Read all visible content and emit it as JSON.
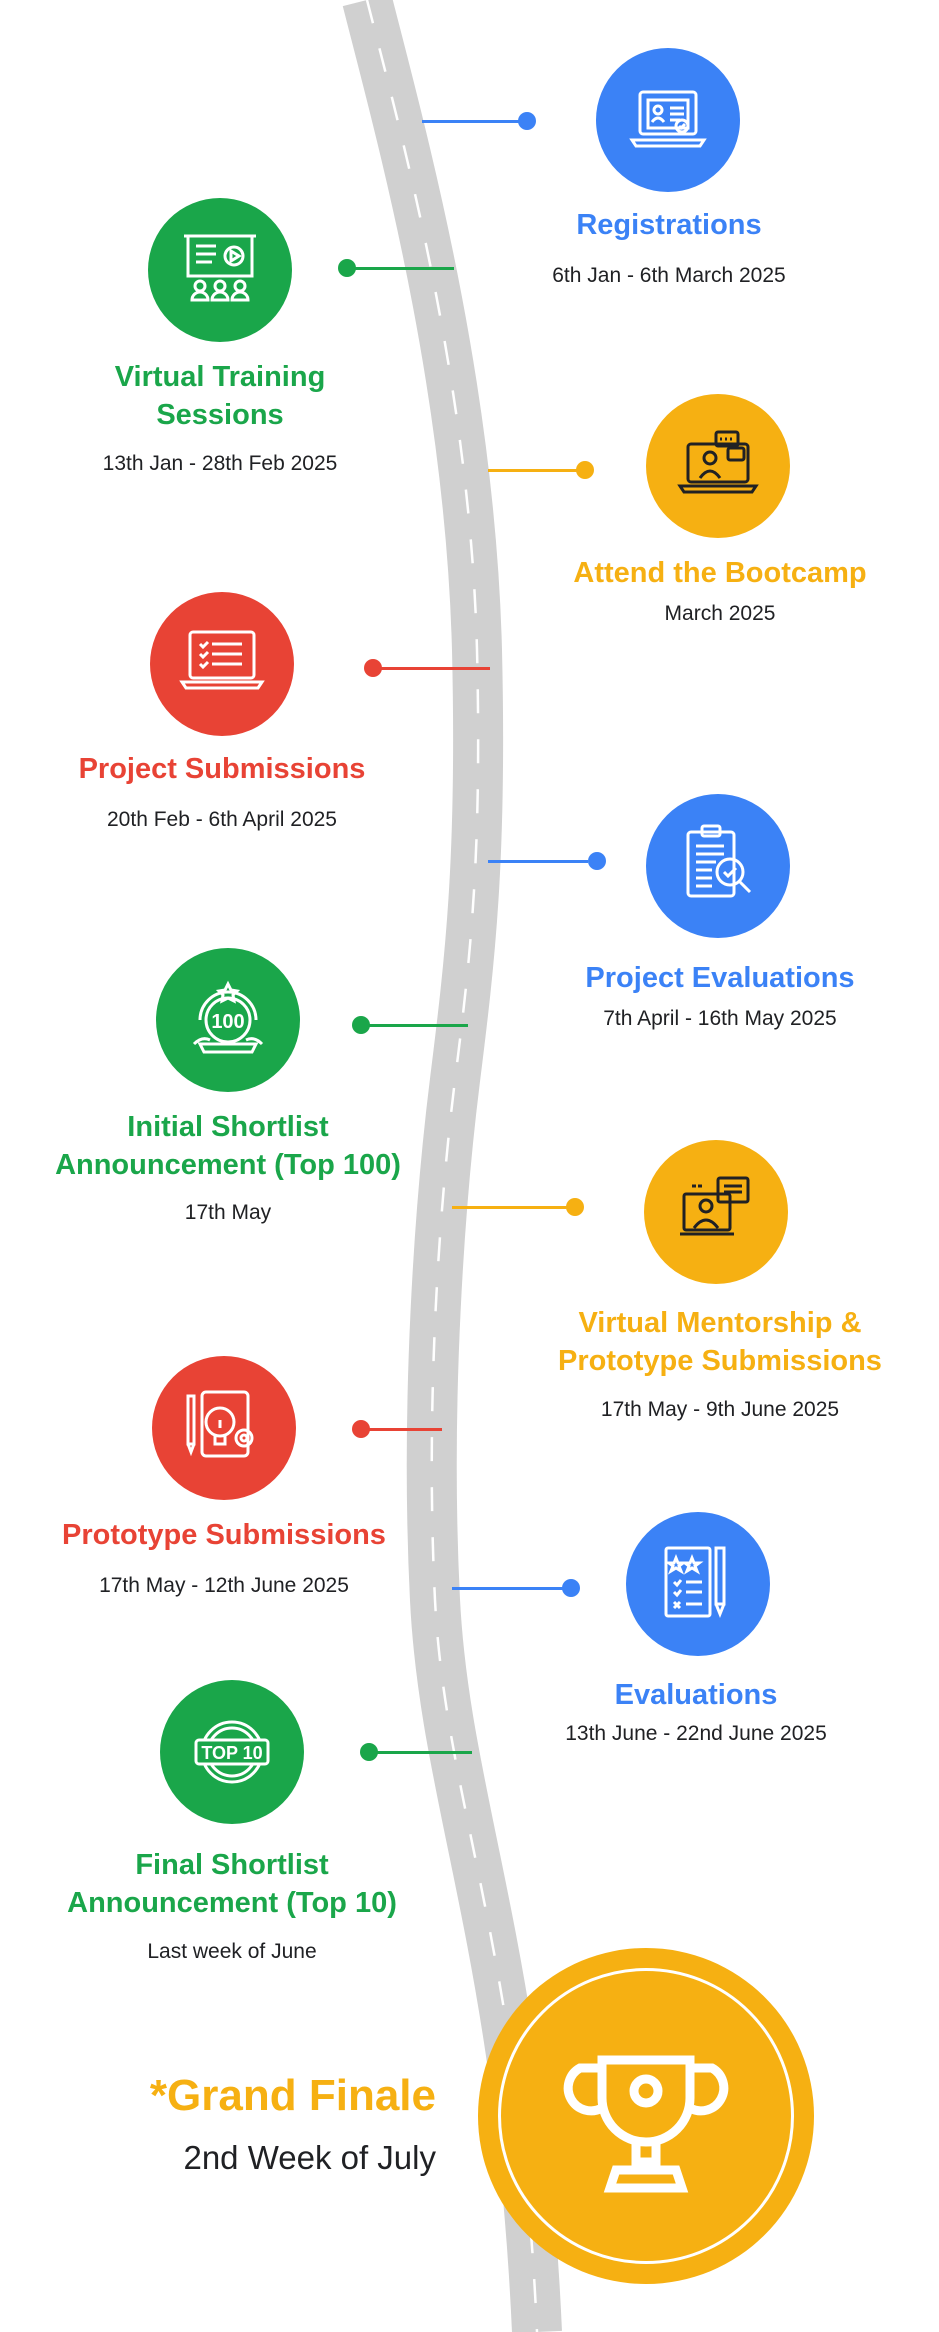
{
  "colors": {
    "blue": "#3b82f6",
    "green": "#1aa64a",
    "yellow": "#f6b012",
    "red": "#e84335",
    "road": "#d0d0d0"
  },
  "milestones": [
    {
      "title": "Registrations",
      "date": "6th Jan - 6th March 2025",
      "color": "blue",
      "icon": "laptop-form-icon"
    },
    {
      "title": "Virtual Training Sessions",
      "date": "13th Jan - 28th Feb 2025",
      "color": "green",
      "icon": "presentation-icon"
    },
    {
      "title": "Attend the Bootcamp",
      "date": "March 2025",
      "color": "yellow",
      "icon": "laptop-chat-icon"
    },
    {
      "title": "Project Submissions",
      "date": "20th Feb - 6th April 2025",
      "color": "red",
      "icon": "checklist-laptop-icon"
    },
    {
      "title": "Project Evaluations",
      "date": "7th April - 16th May 2025",
      "color": "blue",
      "icon": "clipboard-search-icon"
    },
    {
      "title": "Initial Shortlist Announcement (Top 100)",
      "date": "17th May",
      "color": "green",
      "icon": "badge-100-icon"
    },
    {
      "title": "Virtual Mentorship & Prototype Submissions",
      "date": "17th May - 9th June 2025",
      "color": "yellow",
      "icon": "mentor-screen-icon"
    },
    {
      "title": "Prototype Submissions",
      "date": "17th May - 12th June 2025",
      "color": "red",
      "icon": "lightbulb-gear-icon"
    },
    {
      "title": "Evaluations",
      "date": "13th June - 22nd June 2025",
      "color": "blue",
      "icon": "checklist-pencil-icon"
    },
    {
      "title": "Final Shortlist Announcement (Top 10)",
      "date": "Last week of June",
      "color": "green",
      "icon": "top10-badge-icon"
    }
  ],
  "finale": {
    "title": "*Grand Finale",
    "date": "2nd Week of July",
    "color": "yellow",
    "icon": "trophy-icon"
  }
}
